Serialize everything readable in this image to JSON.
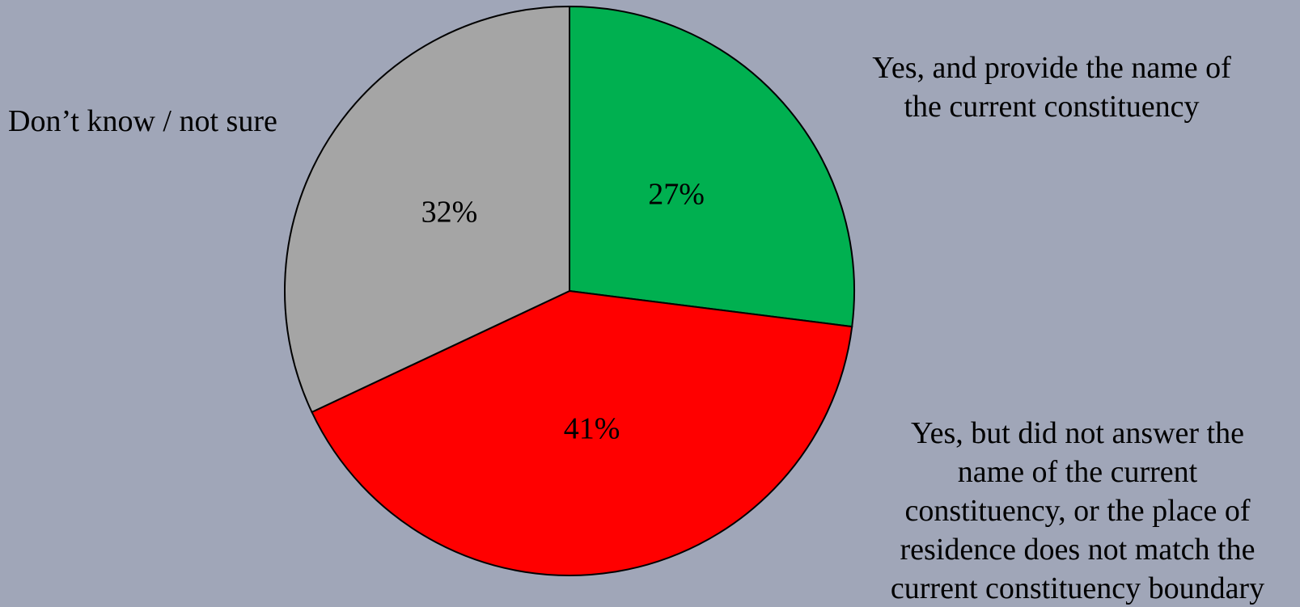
{
  "chart_data": {
    "type": "pie",
    "slices": [
      {
        "label": "Yes, and provide the name of\nthe current constituency",
        "value": 27,
        "value_label": "27%",
        "color": "#00B050"
      },
      {
        "label": "Yes, but did not answer the\nname of the current\nconstituency, or the place of\nresidence does not match the\ncurrent constituency boundary",
        "value": 41,
        "value_label": "41%",
        "color": "#FF0000"
      },
      {
        "label": "Don’t know / not sure",
        "value": 32,
        "value_label": "32%",
        "color": "#A5A5A5"
      }
    ],
    "start_angle_deg": 0,
    "direction": "clockwise",
    "background_color": "#A0A6B8",
    "edge_color": "#000000"
  }
}
